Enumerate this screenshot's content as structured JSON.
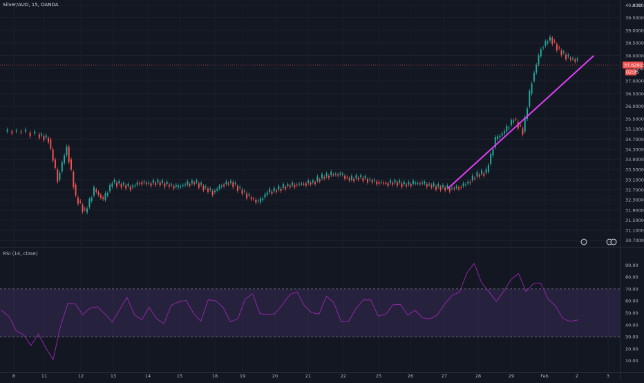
{
  "header": {
    "title": "Silver/AUD, 15, OANDA",
    "currency": "AUD"
  },
  "rsi_label": "RSI (14, close)",
  "current_price": "37.62913",
  "countdown": "02:05",
  "colors": {
    "bg": "#131722",
    "up": "#26a69a",
    "down": "#ef5350",
    "trendline": "#e040fb",
    "rsi_line": "#9c27b0",
    "rsi_band": "#7e57c2"
  },
  "icons": [
    "event-icon",
    "event-icon",
    "event-icon"
  ],
  "chart_data": [
    {
      "type": "line",
      "title": "Silver/AUD, 15, OANDA",
      "ylabel": "AUD",
      "ylim": [
        30.5,
        40.2
      ],
      "y_ticks": [
        "40.00000",
        "39.50000",
        "39.00000",
        "38.50000",
        "38.00000",
        "37.50000",
        "37.00000",
        "36.50000",
        "36.00000",
        "35.50000",
        "35.10000",
        "34.70000",
        "34.30000",
        "33.90000",
        "33.50000",
        "33.10000",
        "32.70000",
        "32.30000",
        "31.90000",
        "31.50000",
        "31.10000",
        "30.70000"
      ],
      "x_ticks": [
        "8",
        "11",
        "12",
        "13",
        "14",
        "15",
        "18",
        "19",
        "20",
        "21",
        "22",
        "25",
        "26",
        "27",
        "28",
        "29",
        "Feb",
        "2",
        "3"
      ],
      "series": [
        {
          "values": [
            [
              0,
              35.0
            ],
            [
              2,
              35.0
            ],
            [
              4,
              34.85
            ],
            [
              5,
              34.7
            ],
            [
              6,
              33.1
            ],
            [
              7,
              34.4
            ],
            [
              8,
              32.4
            ],
            [
              9,
              31.8
            ],
            [
              10,
              32.7
            ],
            [
              11,
              32.3
            ],
            [
              12,
              33.0
            ],
            [
              13,
              32.9
            ],
            [
              14,
              32.8
            ],
            [
              15,
              33.0
            ],
            [
              16,
              32.95
            ],
            [
              17,
              33.0
            ],
            [
              18,
              32.9
            ],
            [
              19,
              32.8
            ],
            [
              20,
              32.9
            ],
            [
              21,
              33.0
            ],
            [
              22,
              32.8
            ],
            [
              23,
              32.6
            ],
            [
              24,
              32.9
            ],
            [
              25,
              33.0
            ],
            [
              26,
              32.7
            ],
            [
              27,
              32.4
            ],
            [
              28,
              32.2
            ],
            [
              29,
              32.6
            ],
            [
              30,
              32.7
            ],
            [
              31,
              32.85
            ],
            [
              32,
              32.9
            ],
            [
              33,
              32.95
            ],
            [
              34,
              33.0
            ],
            [
              35,
              33.2
            ],
            [
              36,
              33.3
            ],
            [
              37,
              33.3
            ],
            [
              38,
              33.1
            ],
            [
              39,
              33.2
            ],
            [
              40,
              33.1
            ],
            [
              41,
              33.0
            ],
            [
              42,
              32.95
            ],
            [
              43,
              33.0
            ],
            [
              44,
              32.9
            ],
            [
              45,
              32.95
            ],
            [
              46,
              32.95
            ],
            [
              47,
              32.85
            ],
            [
              48,
              32.8
            ],
            [
              49,
              32.75
            ],
            [
              50,
              32.8
            ],
            [
              51,
              33.0
            ],
            [
              52,
              33.3
            ],
            [
              53,
              33.4
            ],
            [
              54,
              34.7
            ],
            [
              55,
              35.0
            ],
            [
              56,
              35.5
            ],
            [
              57,
              35.0
            ],
            [
              58,
              37.0
            ],
            [
              59,
              38.3
            ],
            [
              60,
              38.7
            ],
            [
              61,
              38.2
            ],
            [
              62,
              37.9
            ],
            [
              63,
              37.8
            ]
          ]
        },
        {
          "name": "trendline",
          "values": [
            [
              48.8,
              32.75
            ],
            [
              64.8,
              38.0
            ]
          ]
        }
      ]
    },
    {
      "type": "line",
      "title": "RSI (14, close)",
      "ylim": [
        0,
        100
      ],
      "y_ticks": [
        "90.00",
        "80.00",
        "70.00",
        "60.00",
        "50.00",
        "40.00",
        "30.00",
        "20.00",
        "10.00"
      ],
      "bands": {
        "upper": 70,
        "lower": 30
      },
      "series": [
        {
          "name": "RSI",
          "values": [
            52,
            45,
            38,
            30,
            22,
            35,
            18,
            12,
            40,
            55,
            60,
            48,
            52,
            58,
            47,
            42,
            55,
            60,
            50,
            45,
            52,
            48,
            40,
            55,
            62,
            58,
            50,
            45,
            58,
            62,
            55,
            40,
            48,
            60,
            65,
            52,
            46,
            50,
            58,
            62,
            70,
            56,
            48,
            52,
            62,
            58,
            45,
            40,
            55,
            62,
            58,
            50,
            48,
            55,
            60,
            46,
            52,
            48,
            42,
            50,
            58,
            62,
            70,
            82,
            90,
            78,
            65,
            60,
            70,
            75,
            85,
            68,
            72,
            78,
            60,
            55,
            48,
            40,
            45
          ]
        }
      ]
    }
  ]
}
